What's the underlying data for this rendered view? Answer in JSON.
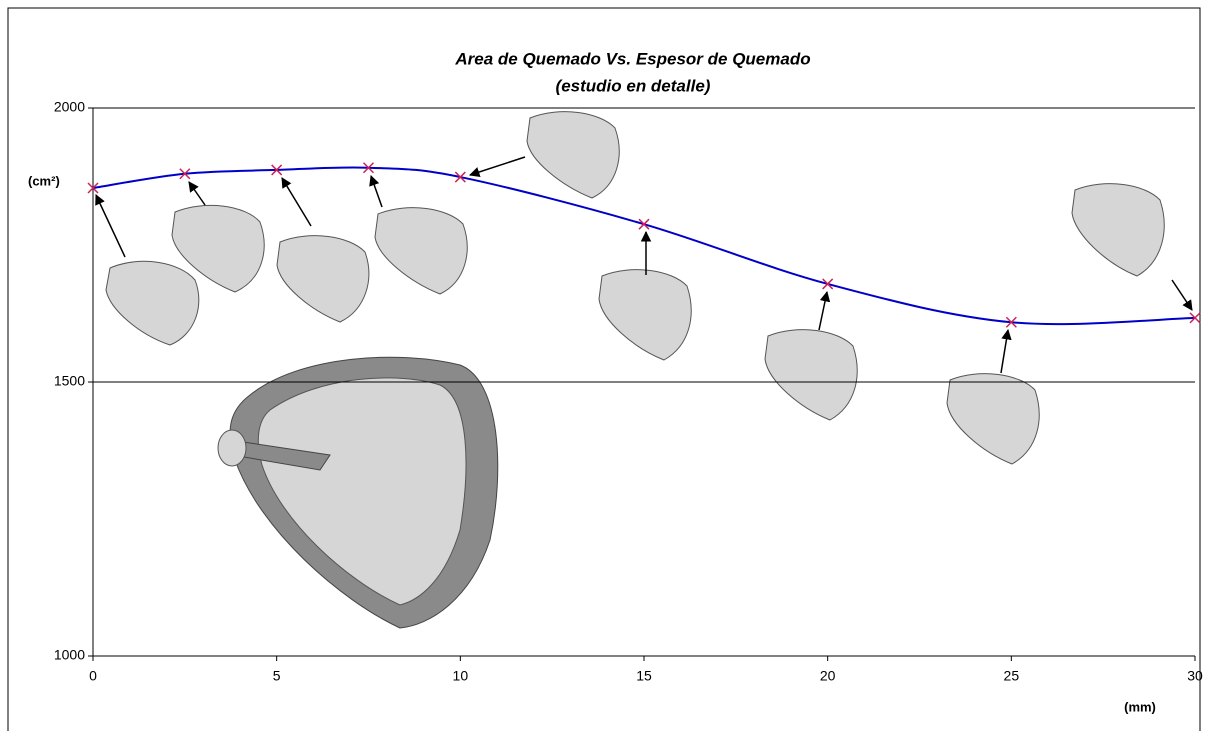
{
  "chart_data": {
    "type": "line",
    "title": "Area de Quemado Vs. Espesor de Quemado",
    "subtitle": "(estudio en detalle)",
    "y_label": "(cm²)",
    "x_label": "(mm)",
    "x": [
      0,
      2.5,
      5,
      7.5,
      10,
      15,
      20,
      25,
      30
    ],
    "series": [
      {
        "color": "#0000c8",
        "marker_color": "#cc2255",
        "values": [
          1854,
          1880,
          1887,
          1891,
          1874,
          1788,
          1679,
          1609,
          1617
        ]
      }
    ],
    "xlim": [
      0,
      30
    ],
    "xticks": [
      0,
      5,
      10,
      15,
      20,
      25,
      30
    ],
    "ylim": [
      1000,
      2000
    ],
    "yticks": [
      1000,
      1500,
      2000
    ],
    "grid": true
  }
}
